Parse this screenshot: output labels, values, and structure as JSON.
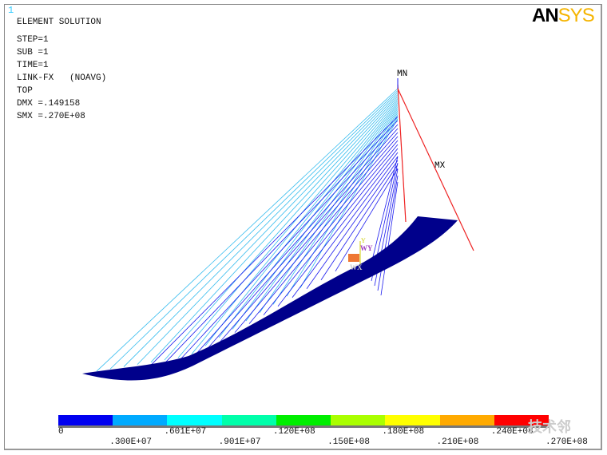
{
  "window_number": "1",
  "logo": {
    "text_a": "AN",
    "text_b": "SYS"
  },
  "info": {
    "title": "ELEMENT SOLUTION",
    "lines": [
      "STEP=1",
      "SUB =1",
      "TIME=1",
      "LINK-FX   (NOAVG)",
      "TOP",
      "DMX =.149158",
      "SMX =.270E+08"
    ]
  },
  "markers": {
    "min": "MN",
    "max": "MX",
    "axis_y": "Y",
    "axis_wy": "WY",
    "axis_wx": "WX"
  },
  "legend": {
    "colors": [
      "#0000f0",
      "#00aaff",
      "#00ffff",
      "#00ffaa",
      "#00ee00",
      "#aaff00",
      "#ffff00",
      "#ffaa00",
      "#ff0000"
    ],
    "labels_top": [
      "0",
      ".601E+07",
      ".120E+08",
      ".180E+08",
      ".240E+08"
    ],
    "labels_bottom": [
      ".300E+07",
      ".901E+07",
      ".150E+08",
      ".210E+08",
      ".270E+08"
    ]
  },
  "colors": {
    "deck": "#00008b",
    "cable_light": "#33bbee",
    "cable_dark": "#1a1aee",
    "tower": "#ee2222"
  },
  "watermark": "技术邻"
}
